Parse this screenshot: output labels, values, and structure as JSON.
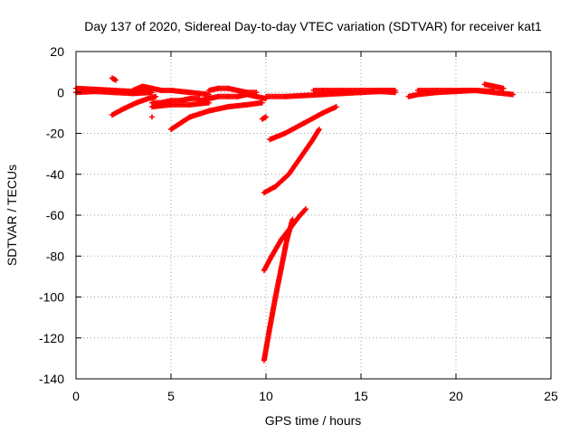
{
  "chart_data": {
    "type": "scatter",
    "title": "Day 137 of 2020, Sidereal Day-to-day VTEC variation (SDTVAR) for receiver kat1",
    "xlabel": "GPS time / hours",
    "ylabel": "SDTVAR / TECUs",
    "xlim": [
      0,
      25
    ],
    "ylim": [
      -140,
      20
    ],
    "x_ticks": [
      0,
      5,
      10,
      15,
      20,
      25
    ],
    "y_ticks": [
      20,
      0,
      -20,
      -40,
      -60,
      -80,
      -100,
      -120,
      -140
    ],
    "x_tick_labels": [
      "0",
      "5",
      "10",
      "15",
      "20",
      "25"
    ],
    "y_tick_labels": [
      "20",
      "0",
      "-20",
      "-40",
      "-60",
      "-80",
      "-100",
      "-120",
      "-140"
    ],
    "grid": true,
    "grid_style": "dotted",
    "marker": "+",
    "marker_color": "#ff0000",
    "series": [
      {
        "segments": [
          {
            "x": [
              0.0,
              1.0,
              2.0,
              3.0,
              4.0
            ],
            "y": [
              2,
              1.5,
              1,
              0.5,
              1
            ]
          },
          {
            "x": [
              0.0,
              1.0,
              2.0,
              3.0,
              4.0
            ],
            "y": [
              0,
              0.5,
              0,
              -0.5,
              0
            ]
          },
          {
            "x": [
              1.9,
              2.1
            ],
            "y": [
              7,
              6
            ]
          },
          {
            "x": [
              1.9,
              2.5,
              3.2,
              3.8,
              4.2
            ],
            "y": [
              -11,
              -8,
              -5,
              -3,
              -2
            ]
          },
          {
            "x": [
              3.0,
              3.5,
              4.0,
              4.5,
              5.0,
              6.0,
              7.0
            ],
            "y": [
              1,
              3,
              2,
              1,
              1,
              0,
              -1
            ]
          },
          {
            "x": [
              4.0
            ],
            "y": [
              -12
            ]
          },
          {
            "x": [
              4.0,
              4.5,
              5.0,
              5.5,
              6.0,
              6.5
            ],
            "y": [
              -5,
              -5,
              -4,
              -4,
              -3,
              -3
            ]
          },
          {
            "x": [
              4.0,
              5.0,
              6.0,
              7.0
            ],
            "y": [
              -7,
              -6,
              -6,
              -5
            ]
          },
          {
            "x": [
              5.0,
              5.5,
              6.0,
              7.0,
              8.0,
              9.0,
              9.8
            ],
            "y": [
              -18,
              -15,
              -12,
              -9,
              -7,
              -6,
              -5
            ]
          },
          {
            "x": [
              6.5,
              7.0,
              7.5,
              8.0,
              8.5,
              9.0,
              9.5,
              10.0
            ],
            "y": [
              -4,
              -3,
              -2,
              -2,
              -2,
              -1,
              -2,
              -3
            ]
          },
          {
            "x": [
              7.0,
              7.5,
              8.0,
              8.5,
              9.0,
              9.5
            ],
            "y": [
              1,
              2,
              2,
              1,
              0,
              0
            ]
          },
          {
            "x": [
              9.8,
              10.0
            ],
            "y": [
              -13,
              -12
            ]
          },
          {
            "x": [
              10.2,
              11.0,
              12.0,
              13.0,
              13.7
            ],
            "y": [
              -23,
              -20,
              -15,
              -10,
              -7
            ]
          },
          {
            "x": [
              9.9,
              10.5,
              11.2,
              11.8,
              12.4,
              12.8
            ],
            "y": [
              -49,
              -46,
              -40,
              -32,
              -24,
              -18
            ]
          },
          {
            "x": [
              9.9,
              10.3,
              10.8,
              11.3,
              11.8,
              12.1
            ],
            "y": [
              -87,
              -80,
              -72,
              -66,
              -60,
              -57
            ]
          },
          {
            "x": [
              9.9,
              10.2,
              10.5,
              10.8,
              11.1,
              11.4
            ],
            "y": [
              -131,
              -115,
              -100,
              -86,
              -72,
              -62
            ]
          },
          {
            "x": [
              10.0,
              11.0,
              12.0,
              13.0,
              14.0,
              15.0,
              16.0,
              16.8
            ],
            "y": [
              -2,
              -2,
              -1.5,
              -1,
              -0.5,
              0,
              0.5,
              0
            ]
          },
          {
            "x": [
              12.5,
              13.0,
              14.0,
              15.0,
              16.0,
              16.8
            ],
            "y": [
              1,
              1,
              1,
              1,
              1,
              1
            ]
          },
          {
            "x": [
              17.5,
              18.0,
              19.0,
              20.0,
              21.0,
              22.0,
              23.0
            ],
            "y": [
              -2,
              -1,
              0,
              0.5,
              1,
              0,
              -1
            ]
          },
          {
            "x": [
              18.0,
              19.0,
              20.0,
              21.0,
              22.0
            ],
            "y": [
              1,
              1,
              1,
              1,
              0.5
            ]
          },
          {
            "x": [
              21.5,
              22.0,
              22.5
            ],
            "y": [
              4,
              3,
              2
            ]
          }
        ]
      }
    ]
  }
}
